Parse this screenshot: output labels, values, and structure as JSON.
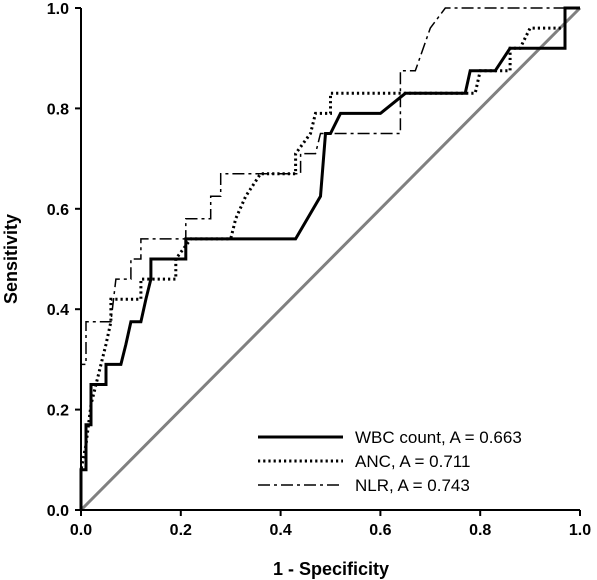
{
  "chart_data": {
    "type": "line",
    "title": "",
    "xlabel": "1 - Specificity",
    "ylabel": "Sensitivity",
    "xlim": [
      0,
      1
    ],
    "ylim": [
      0,
      1
    ],
    "xticks": [
      "0.0",
      "0.2",
      "0.4",
      "0.6",
      "0.8",
      "1.0"
    ],
    "yticks": [
      "0.0",
      "0.2",
      "0.4",
      "0.6",
      "0.8",
      "1.0"
    ],
    "grid": false,
    "legend_position": "bottom-right",
    "reference_line": {
      "x": [
        0,
        1
      ],
      "y": [
        0,
        1
      ],
      "color": "#808080"
    },
    "series": [
      {
        "name": "WBC count, A = 0.663",
        "style": "solid",
        "color": "#000000",
        "x": [
          0,
          0,
          0.01,
          0.01,
          0.02,
          0.02,
          0.03,
          0.03,
          0.05,
          0.05,
          0.07,
          0.07,
          0.08,
          0.09,
          0.1,
          0.11,
          0.12,
          0.13,
          0.14,
          0.14,
          0.21,
          0.21,
          0.43,
          0.43,
          0.48,
          0.48,
          0.49,
          0.5,
          0.52,
          0.54,
          0.57,
          0.6,
          0.65,
          0.65,
          0.77,
          0.77,
          0.78,
          0.79,
          0.83,
          0.83,
          0.86,
          0.86,
          0.87,
          0.97,
          0.97,
          1
        ],
        "y": [
          0,
          0.08,
          0.08,
          0.17,
          0.17,
          0.25,
          0.25,
          0.25,
          0.25,
          0.29,
          0.29,
          0.29,
          0.29,
          0.33,
          0.375,
          0.375,
          0.375,
          0.42,
          0.46,
          0.5,
          0.5,
          0.54,
          0.54,
          0.54,
          0.625,
          0.625,
          0.75,
          0.75,
          0.79,
          0.79,
          0.79,
          0.79,
          0.83,
          0.83,
          0.83,
          0.83,
          0.875,
          0.875,
          0.875,
          0.875,
          0.92,
          0.92,
          0.92,
          0.92,
          1,
          1
        ]
      },
      {
        "name": "ANC, A = 0.711",
        "style": "dotted",
        "color": "#000000",
        "x": [
          0,
          0,
          0.01,
          0.02,
          0.03,
          0.04,
          0.05,
          0.06,
          0.06,
          0.12,
          0.12,
          0.19,
          0.19,
          0.22,
          0.3,
          0.31,
          0.33,
          0.36,
          0.43,
          0.43,
          0.46,
          0.47,
          0.5,
          0.5,
          0.56,
          0.6,
          0.62,
          0.79,
          0.8,
          0.83,
          0.86,
          0.86,
          0.88,
          0.9,
          0.93,
          0.97,
          0.97,
          1
        ],
        "y": [
          0,
          0.08,
          0.13,
          0.21,
          0.25,
          0.29,
          0.33,
          0.375,
          0.42,
          0.42,
          0.46,
          0.46,
          0.5,
          0.54,
          0.54,
          0.58,
          0.625,
          0.67,
          0.67,
          0.71,
          0.75,
          0.79,
          0.79,
          0.83,
          0.83,
          0.83,
          0.83,
          0.83,
          0.875,
          0.875,
          0.875,
          0.92,
          0.92,
          0.96,
          0.96,
          0.96,
          1,
          1
        ]
      },
      {
        "name": "NLR, A = 0.743",
        "style": "dashdot",
        "color": "#000000",
        "x": [
          0,
          0,
          0.01,
          0.01,
          0.03,
          0.03,
          0.05,
          0.05,
          0.06,
          0.07,
          0.07,
          0.1,
          0.1,
          0.11,
          0.12,
          0.12,
          0.17,
          0.21,
          0.21,
          0.26,
          0.26,
          0.28,
          0.28,
          0.32,
          0.32,
          0.44,
          0.44,
          0.47,
          0.48,
          0.5,
          0.58,
          0.58,
          0.64,
          0.64,
          0.67,
          0.67,
          0.7,
          0.73,
          0.74,
          0.96,
          0.96,
          1
        ],
        "y": [
          0,
          0.29,
          0.29,
          0.375,
          0.375,
          0.375,
          0.375,
          0.375,
          0.375,
          0.46,
          0.46,
          0.46,
          0.5,
          0.5,
          0.5,
          0.54,
          0.54,
          0.54,
          0.58,
          0.58,
          0.625,
          0.625,
          0.67,
          0.67,
          0.67,
          0.67,
          0.71,
          0.71,
          0.75,
          0.75,
          0.75,
          0.75,
          0.75,
          0.875,
          0.875,
          0.875,
          0.96,
          1,
          1,
          1,
          1,
          1
        ]
      }
    ]
  }
}
